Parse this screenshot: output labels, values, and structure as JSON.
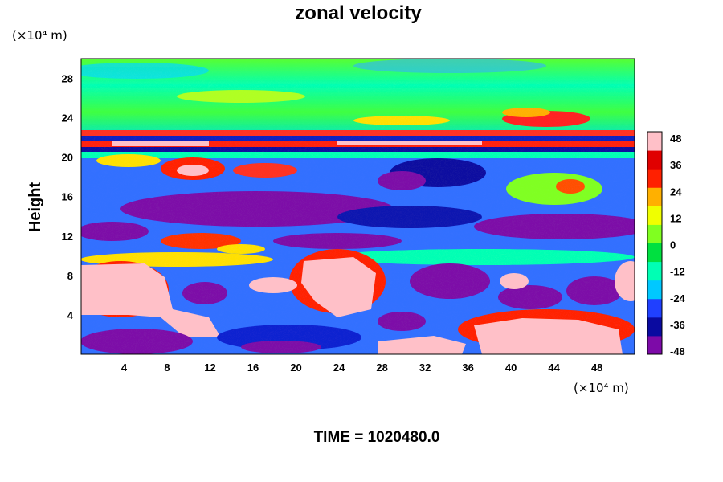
{
  "chart_data": {
    "type": "heatmap",
    "title": "zonal velocity",
    "ylabel": "Height",
    "xlabel": "",
    "x_unit": "(×10⁴ m)",
    "y_unit": "(×10⁴ m)",
    "x_ticks": [
      4,
      8,
      12,
      16,
      20,
      24,
      28,
      32,
      36,
      40,
      44,
      48
    ],
    "y_ticks": [
      4,
      8,
      12,
      16,
      20,
      24,
      28
    ],
    "xlim": [
      0,
      51.5
    ],
    "ylim": [
      0,
      30
    ],
    "colorbar": {
      "ticks": [
        -48,
        -36,
        -24,
        -12,
        0,
        12,
        24,
        36,
        48
      ],
      "range": [
        -48,
        48
      ],
      "colors": [
        "#7d0aa8",
        "#0a0aa0",
        "#2040ff",
        "#00c8ff",
        "#00ffb4",
        "#00e040",
        "#80ff20",
        "#f0ff00",
        "#ffb000",
        "#ff2000",
        "#e00000",
        "#ffc0c8"
      ]
    },
    "footer": "TIME = 1020480.0",
    "field_bands": [
      {
        "y_range": [
          0,
          4
        ],
        "typical_value": -10,
        "note": "mixed purple/blue with pink positive patches"
      },
      {
        "y_range": [
          4,
          10
        ],
        "typical_value": 20,
        "note": "large pink (>48) regions near x=0-6, 20-26, 40-50"
      },
      {
        "y_range": [
          10,
          14
        ],
        "typical_value": -40,
        "note": "purple band"
      },
      {
        "y_range": [
          14,
          20
        ],
        "typical_value": -30,
        "note": "purple/blue with red patches"
      },
      {
        "y_range": [
          20,
          23
        ],
        "typical_value": 40,
        "note": "alternating red/pink and dark blue stripes"
      },
      {
        "y_range": [
          23,
          30
        ],
        "typical_value": 5,
        "note": "green with red patches near x=40-48, y=24"
      }
    ]
  }
}
